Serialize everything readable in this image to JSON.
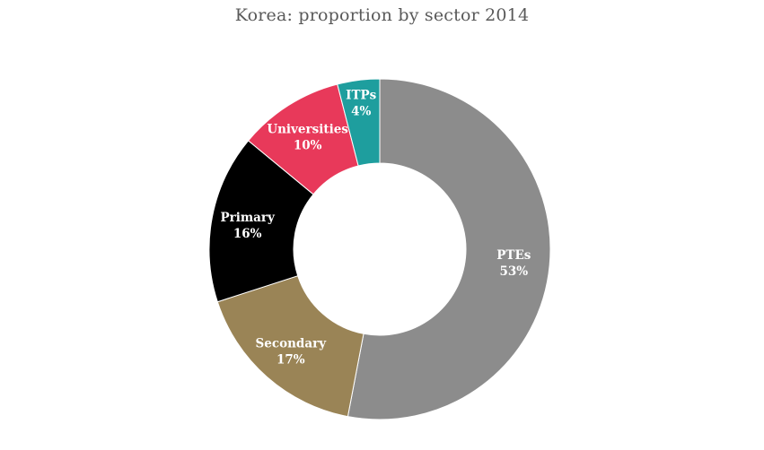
{
  "chart_data": {
    "type": "pie",
    "variant": "donut",
    "title": "Korea: proportion by sector 2014",
    "start_angle_deg": 0,
    "direction": "clockwise",
    "slices": [
      {
        "label": "PTEs",
        "value": 53,
        "value_label": "53%",
        "color": "#8c8c8c",
        "label_color": "#ffffff"
      },
      {
        "label": "Secondary",
        "value": 17,
        "value_label": "17%",
        "color": "#9a8456",
        "label_color": "#ffffff"
      },
      {
        "label": "Primary",
        "value": 16,
        "value_label": "16%",
        "color": "#000000",
        "label_color": "#ffffff"
      },
      {
        "label": "Universities",
        "value": 10,
        "value_label": "10%",
        "color": "#e8395a",
        "label_color": "#ffffff"
      },
      {
        "label": "ITPs",
        "value": 4,
        "value_label": "4%",
        "color": "#1e9e9e",
        "label_color": "#ffffff"
      }
    ]
  }
}
